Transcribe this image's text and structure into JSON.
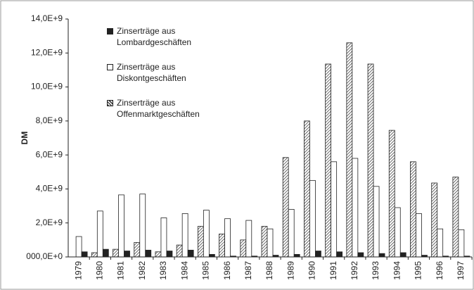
{
  "chart_data": {
    "type": "bar",
    "y_label": "DM",
    "categories": [
      "1979",
      "1980",
      "1981",
      "1982",
      "1983",
      "1984",
      "1985",
      "1986",
      "1987",
      "1988",
      "1989",
      "1990",
      "1991",
      "1992",
      "1993",
      "1994",
      "1995",
      "1996",
      "1997"
    ],
    "series": [
      {
        "name": "Zinserträge aus Offenmarktgeschäften",
        "color": "#444444",
        "pattern": "hatch",
        "values": [
          0,
          250000000,
          450000000,
          850000000,
          300000000,
          700000000,
          1800000000,
          1350000000,
          1000000000,
          1800000000,
          5850000000,
          8000000000,
          11350000000,
          12600000000,
          11350000000,
          7450000000,
          5600000000,
          4350000000,
          4700000000
        ]
      },
      {
        "name": "Zinserträge aus Diskontgeschäften",
        "color": "#ffffff",
        "values": [
          1200000000,
          2700000000,
          3650000000,
          3700000000,
          2300000000,
          2550000000,
          2750000000,
          2250000000,
          2150000000,
          1650000000,
          2800000000,
          4500000000,
          5600000000,
          5800000000,
          4150000000,
          2900000000,
          2550000000,
          1650000000,
          1600000000
        ]
      },
      {
        "name": "Zinserträge aus Lombardgeschäften",
        "color": "#222222",
        "values": [
          300000000,
          450000000,
          350000000,
          400000000,
          350000000,
          400000000,
          150000000,
          50000000,
          50000000,
          100000000,
          150000000,
          350000000,
          300000000,
          250000000,
          200000000,
          250000000,
          100000000,
          50000000,
          50000000
        ]
      }
    ],
    "legend_order": [
      2,
      1,
      0
    ],
    "ylim": [
      0,
      14000000000
    ],
    "yticks": [
      {
        "value": 0,
        "label": "000,0E+0"
      },
      {
        "value": 2000000000,
        "label": "2,0E+9"
      },
      {
        "value": 4000000000,
        "label": "4,0E+9"
      },
      {
        "value": 6000000000,
        "label": "6,0E+9"
      },
      {
        "value": 8000000000,
        "label": "8,0E+9"
      },
      {
        "value": 10000000000,
        "label": "10,0E+9"
      },
      {
        "value": 12000000000,
        "label": "12,0E+9"
      },
      {
        "value": 14000000000,
        "label": "14,0E+9"
      }
    ],
    "grid": false
  }
}
